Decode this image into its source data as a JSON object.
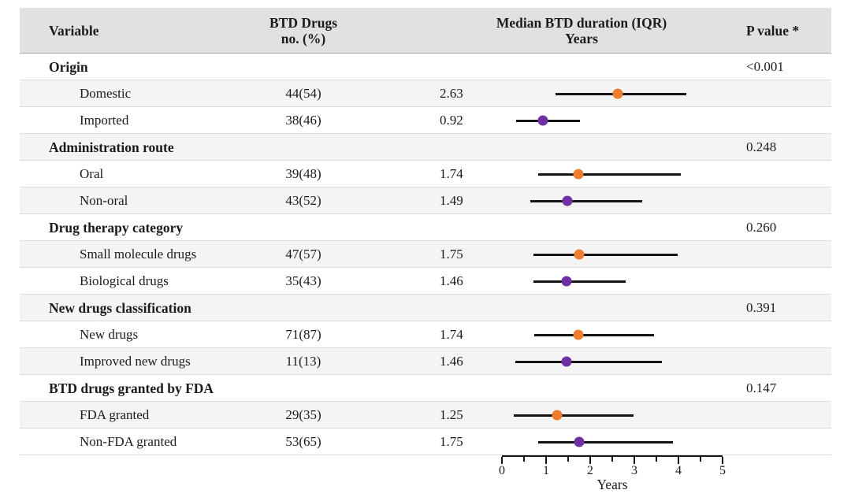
{
  "header": {
    "variable": "Variable",
    "count_line1": "BTD Drugs",
    "count_line2": "no. (%)",
    "median_line1": "Median BTD duration (IQR)",
    "median_line2": "Years",
    "p_value": "P value *"
  },
  "colors": {
    "orange": "#EE7D2E",
    "purple": "#7130A1",
    "header_bg": "#e2e1e1",
    "alt_row_bg": "#f4f4f4",
    "line": "#141414"
  },
  "chart_data": {
    "type": "forest",
    "xlabel": "Years",
    "xlim": [
      0,
      5
    ],
    "xticks": [
      0,
      1,
      2,
      3,
      4,
      5
    ],
    "minor_tick_step": 0.5,
    "legend": "first item of each group = orange dot, second item = purple dot",
    "groups": [
      {
        "label": "Origin",
        "p_value": "<0.001",
        "items": [
          {
            "label": "Domestic",
            "n_pct": "44(54)",
            "median": 2.63,
            "iqr": [
              1.21,
              4.17
            ],
            "color": "orange"
          },
          {
            "label": "Imported",
            "n_pct": "38(46)",
            "median": 0.92,
            "iqr": [
              0.33,
              1.76
            ],
            "color": "purple"
          }
        ]
      },
      {
        "label": "Administration route",
        "p_value": "0.248",
        "items": [
          {
            "label": "Oral",
            "n_pct": "39(48)",
            "median": 1.74,
            "iqr": [
              0.83,
              4.05
            ],
            "color": "orange"
          },
          {
            "label": "Non-oral",
            "n_pct": "43(52)",
            "median": 1.49,
            "iqr": [
              0.65,
              3.17
            ],
            "color": "purple"
          }
        ]
      },
      {
        "label": "Drug therapy category",
        "p_value": "0.260",
        "items": [
          {
            "label": "Small molecule drugs",
            "n_pct": "47(57)",
            "median": 1.75,
            "iqr": [
              0.72,
              3.99
            ],
            "color": "orange"
          },
          {
            "label": "Biological drugs",
            "n_pct": "35(43)",
            "median": 1.46,
            "iqr": [
              0.72,
              2.81
            ],
            "color": "purple"
          }
        ]
      },
      {
        "label": "New drugs classification",
        "p_value": "0.391",
        "items": [
          {
            "label": "New drugs",
            "n_pct": "71(87)",
            "median": 1.74,
            "iqr": [
              0.74,
              3.45
            ],
            "color": "orange"
          },
          {
            "label": "Improved new drugs",
            "n_pct": "11(13)",
            "median": 1.46,
            "iqr": [
              0.31,
              3.62
            ],
            "color": "purple"
          }
        ]
      },
      {
        "label": "BTD drugs granted by FDA",
        "p_value": "0.147",
        "items": [
          {
            "label": "FDA granted",
            "n_pct": "29(35)",
            "median": 1.25,
            "iqr": [
              0.27,
              2.99
            ],
            "color": "orange"
          },
          {
            "label": "Non-FDA granted",
            "n_pct": "53(65)",
            "median": 1.75,
            "iqr": [
              0.83,
              3.87
            ],
            "color": "purple"
          }
        ]
      }
    ]
  }
}
